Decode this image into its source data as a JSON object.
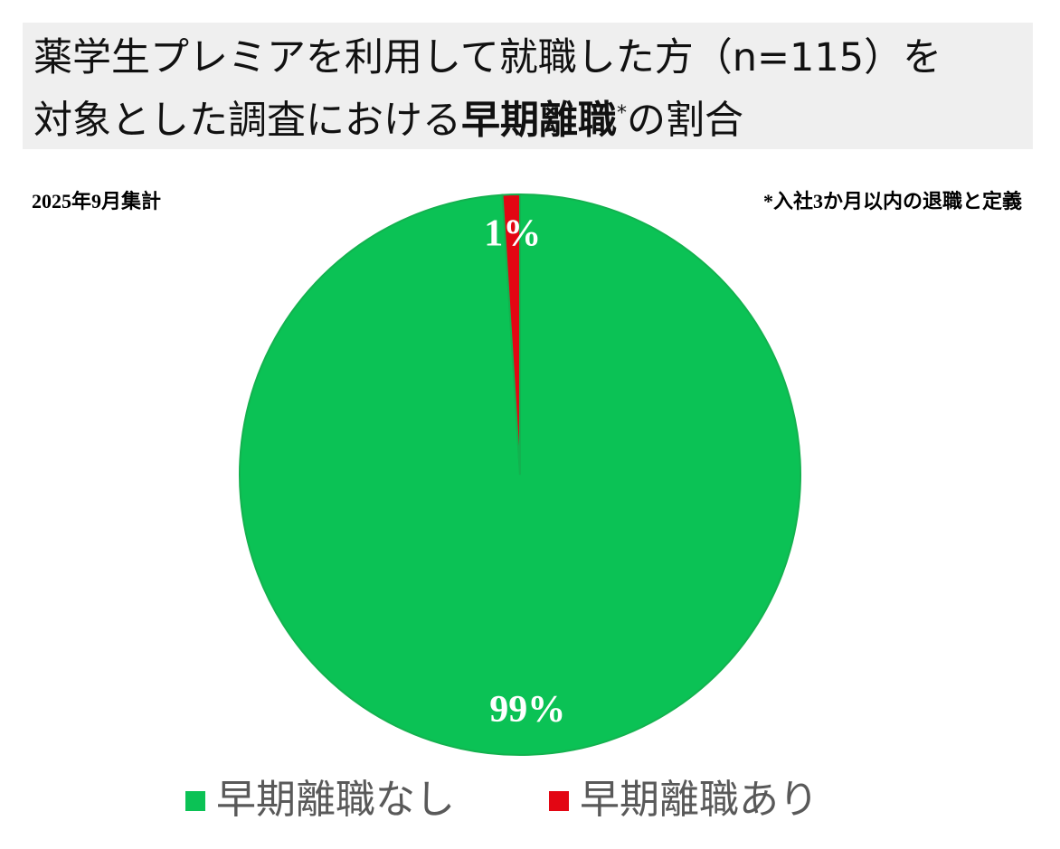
{
  "chart_data": {
    "type": "pie",
    "title_lines": [
      [
        {
          "text": "薬学生プレミアを利用して就職した方（n=115）を",
          "bold": false,
          "sup": false
        }
      ],
      [
        {
          "text": "対象とした調査における",
          "bold": false,
          "sup": false
        },
        {
          "text": "早期離職",
          "bold": true,
          "sup": false
        },
        {
          "text": "*",
          "bold": false,
          "sup": true
        },
        {
          "text": "の割合",
          "bold": false,
          "sup": false
        }
      ]
    ],
    "subtitle": "2025年9月集計",
    "note": "*入社3か月以内の退職と定義",
    "categories": [
      "早期離職なし",
      "早期離職あり"
    ],
    "values": [
      99,
      1
    ],
    "value_labels": [
      "99%",
      "1%"
    ],
    "colors": [
      "#0bc255",
      "#e30613"
    ]
  }
}
